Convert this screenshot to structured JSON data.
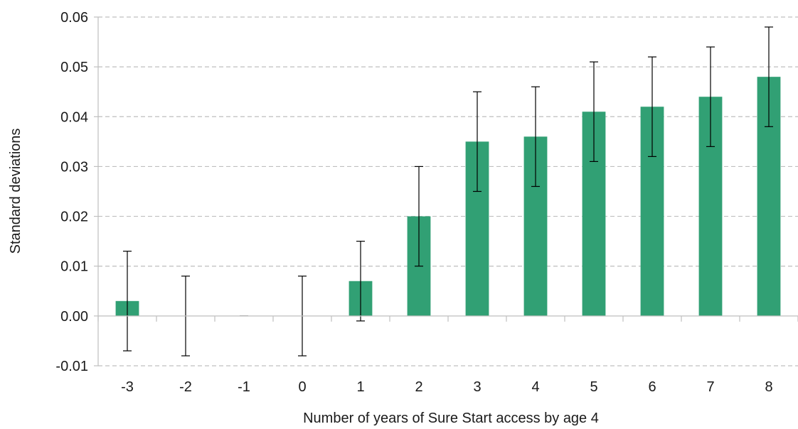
{
  "chart_data": {
    "type": "bar",
    "title": "",
    "xlabel": "Number of years of Sure Start access by age 4",
    "ylabel": "Standard deviations",
    "categories": [
      "-3",
      "-2",
      "-1",
      "0",
      "1",
      "2",
      "3",
      "4",
      "5",
      "6",
      "7",
      "8"
    ],
    "values": [
      0.003,
      0.0,
      0.0,
      0.0,
      0.007,
      0.02,
      0.035,
      0.036,
      0.041,
      0.042,
      0.044,
      0.048
    ],
    "error_low": [
      -0.007,
      -0.008,
      0.0,
      -0.008,
      -0.001,
      0.01,
      0.025,
      0.026,
      0.031,
      0.032,
      0.034,
      0.038
    ],
    "error_high": [
      0.013,
      0.008,
      0.0,
      0.008,
      0.015,
      0.03,
      0.045,
      0.046,
      0.051,
      0.052,
      0.054,
      0.058
    ],
    "ylim": [
      -0.01,
      0.06
    ],
    "yticks": [
      "-0.01",
      "0.00",
      "0.01",
      "0.02",
      "0.03",
      "0.04",
      "0.05",
      "0.06"
    ],
    "grid": true,
    "bar_color": "#31a074",
    "error_bar_color": "#000000",
    "grid_color": "#bfbfbf"
  }
}
